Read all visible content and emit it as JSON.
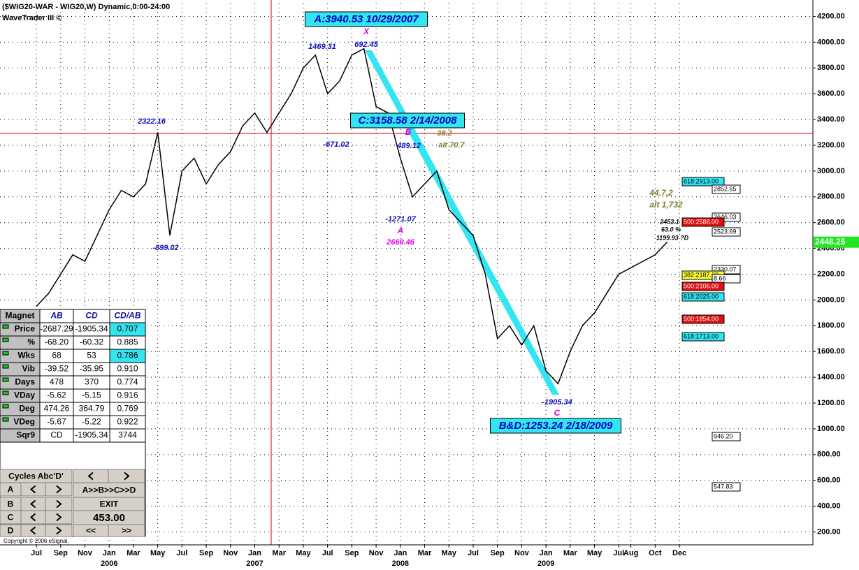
{
  "header": {
    "title": "($WIG20-WAR - WIG20,W) Dynamic,0:00-24:00",
    "subtitle": "WaveTrader III ©"
  },
  "chart_data": {
    "type": "line",
    "color": "#000000",
    "x": [
      0,
      1,
      2,
      3,
      4,
      5,
      6,
      7,
      8,
      9,
      10,
      11,
      12,
      13,
      14,
      15,
      16,
      17,
      18,
      19,
      20,
      21,
      22,
      23,
      24,
      25,
      26,
      27,
      28,
      29,
      30,
      31,
      32,
      33,
      34,
      35,
      36,
      37,
      38,
      39,
      40,
      41,
      42,
      43,
      44,
      45,
      46,
      47,
      48,
      49,
      50,
      51,
      52
    ],
    "values": [
      1950,
      2050,
      2200,
      2350,
      2300,
      2500,
      2700,
      2850,
      2800,
      2900,
      3300,
      2500,
      3000,
      3100,
      2900,
      3050,
      3150,
      3350,
      3450,
      3300,
      3450,
      3600,
      3800,
      3900,
      3600,
      3700,
      3900,
      3950,
      3500,
      3450,
      3100,
      2800,
      2900,
      3000,
      2700,
      2600,
      2500,
      2200,
      1700,
      1800,
      1650,
      1800,
      1450,
      1350,
      1600,
      1800,
      1900,
      2050,
      2200,
      2250,
      2300,
      2350,
      2450
    ],
    "xlim": [
      -3,
      64
    ],
    "ylim": [
      100,
      4300
    ],
    "yticks": [
      {
        "value": 200,
        "label": "200.00"
      },
      {
        "value": 400,
        "label": "400.00"
      },
      {
        "value": 600,
        "label": "600.00"
      },
      {
        "value": 800,
        "label": "800.00"
      },
      {
        "value": 1000,
        "label": "1000.00"
      },
      {
        "value": 1200,
        "label": "1200.00"
      },
      {
        "value": 1400,
        "label": "1400.00"
      },
      {
        "value": 1600,
        "label": "1600.00"
      },
      {
        "value": 1800,
        "label": "1800.00"
      },
      {
        "value": 2000,
        "label": "2000.00"
      },
      {
        "value": 2200,
        "label": "2200.00"
      },
      {
        "value": 2400,
        "label": "2400.00"
      },
      {
        "value": 2600,
        "label": "2600.00"
      },
      {
        "value": 2800,
        "label": "2800.00"
      },
      {
        "value": 3000,
        "label": "3000.00"
      },
      {
        "value": 3200,
        "label": "3200.00"
      },
      {
        "value": 3400,
        "label": "3400.00"
      },
      {
        "value": 3600,
        "label": "3600.00"
      },
      {
        "value": 3800,
        "label": "3800.00"
      },
      {
        "value": 4000,
        "label": "4000.00"
      },
      {
        "value": 4200,
        "label": "4200.00"
      }
    ],
    "xticks": [
      {
        "value": 0,
        "label": "Jul"
      },
      {
        "value": 2,
        "label": "Sep"
      },
      {
        "value": 4,
        "label": "Nov"
      },
      {
        "value": 6,
        "label": "Jan"
      },
      {
        "value": 8,
        "label": "Mar"
      },
      {
        "value": 10,
        "label": "May"
      },
      {
        "value": 12,
        "label": "Jul"
      },
      {
        "value": 14,
        "label": "Sep"
      },
      {
        "value": 16,
        "label": "Nov"
      },
      {
        "value": 18,
        "label": "Jan"
      },
      {
        "value": 20,
        "label": "Mar"
      },
      {
        "value": 22,
        "label": "May"
      },
      {
        "value": 24,
        "label": "Jul"
      },
      {
        "value": 26,
        "label": "Sep"
      },
      {
        "value": 28,
        "label": "Nov"
      },
      {
        "value": 30,
        "label": "Jan"
      },
      {
        "value": 32,
        "label": "Mar"
      },
      {
        "value": 34,
        "label": "May"
      },
      {
        "value": 36,
        "label": "Jul"
      },
      {
        "value": 38,
        "label": "Sep"
      },
      {
        "value": 40,
        "label": "Nov"
      },
      {
        "value": 42,
        "label": "Jan"
      },
      {
        "value": 44,
        "label": "Mar"
      },
      {
        "value": 46,
        "label": "May"
      },
      {
        "value": 48,
        "label": "Jul"
      },
      {
        "value": 49,
        "label": "Aug"
      },
      {
        "value": 51,
        "label": "Oct"
      },
      {
        "value": 53,
        "label": "Dec"
      }
    ],
    "years": [
      {
        "value": 6,
        "label": "2006"
      },
      {
        "value": 18,
        "label": "2007"
      },
      {
        "value": 30,
        "label": "2008"
      },
      {
        "value": 42,
        "label": "2009"
      }
    ],
    "grid": true,
    "last_price": 2448.25,
    "annotations": [
      "A:3940.53 10/29/2007",
      "X",
      "1469.31",
      "692.45",
      "2322.16",
      "-671.02",
      "C:3158.58 2/14/2008",
      "B",
      "38.2",
      "alt 70.7",
      "489.12",
      "-1271.07",
      "A",
      "2669.46",
      "-899.02",
      "-1905.34",
      "C",
      "B&D:1253.24 2/18/2009",
      "44.7,2",
      "alt 1,732",
      "2453.1",
      "63.0 %",
      "1199.93 ?D"
    ],
    "levels": [
      "618:2913.00",
      "2852.65",
      "2646.03",
      "500:2588.00",
      "2523.69",
      "2330.07",
      "382:2187.00",
      "8.66",
      "500:2106.00",
      "618:2025.00",
      "500:1854.00",
      "618:1713.00",
      "946.20",
      "547.83"
    ]
  },
  "magnet": {
    "headers": [
      "Magnet",
      "AB",
      "CD",
      "CD/AB"
    ],
    "rows": [
      [
        "Price",
        "-2687.29",
        "-1905.34",
        "0.707"
      ],
      [
        "%",
        "-68.20",
        "-60.32",
        "0.885"
      ],
      [
        "Wks",
        "68",
        "53",
        "0.786"
      ],
      [
        "Vib",
        "-39.52",
        "-35.95",
        "0.910"
      ],
      [
        "Days",
        "478",
        "370",
        "0.774"
      ],
      [
        "VDay",
        "-5.62",
        "-5.15",
        "0.916"
      ],
      [
        "Deg",
        "474.26",
        "364.79",
        "0.769"
      ],
      [
        "VDeg",
        "-5.67",
        "-5.22",
        "0.922"
      ],
      [
        "Sqr9",
        "CD",
        "-1905.34",
        "3744"
      ]
    ]
  },
  "controls": {
    "cycles": "Cycles Abc'D'",
    "sequence": "A>>B>>C>>D",
    "exit": "EXIT",
    "value": "453.00",
    "rows": [
      "A",
      "B",
      "C",
      "D"
    ],
    "back": "<<",
    "forward": ">>"
  },
  "footer": "Copyright © 2006 eSignal."
}
